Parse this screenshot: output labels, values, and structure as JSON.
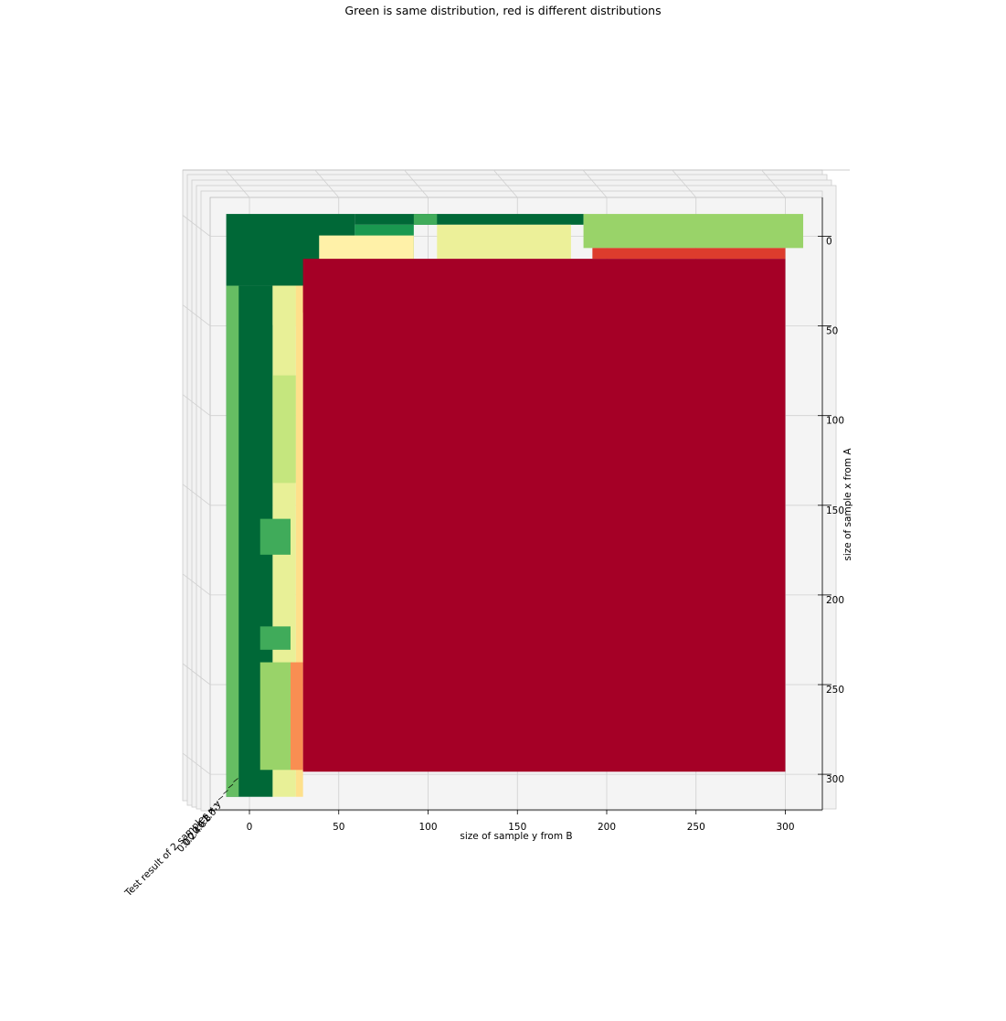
{
  "chart_data": {
    "type": "surface3d",
    "title": "Green is same distribution, red is different distributions",
    "xlabel": "size of sample y from B",
    "ylabel": "size of sample x from A",
    "zlabel": "Test result of 2 samples x,y",
    "x_ticks": [
      0,
      50,
      100,
      150,
      200,
      250,
      300
    ],
    "y_ticks": [
      0,
      50,
      100,
      150,
      200,
      250,
      300
    ],
    "z_ticks": [
      "0.0",
      "0.2",
      "0.4",
      "0.6",
      "0.8",
      "1.0"
    ],
    "xlim": [
      -15,
      320
    ],
    "ylim": [
      -20,
      318
    ],
    "colormap": "RdYlGn",
    "colors": {
      "green_dark": "#006837",
      "green": "#1a9850",
      "green_mid": "#66bd63",
      "green_light": "#a6d96a",
      "yellow_green": "#d9ef8b",
      "yellow": "#fff1a8",
      "orange_light": "#fdae61",
      "orange": "#f46d43",
      "red": "#d73027",
      "red_dark": "#a50026"
    },
    "cells": [
      {
        "x": [
          -13,
          59
        ],
        "y": [
          -15,
          25
        ],
        "value": 1.0
      },
      {
        "x": [
          59,
          187
        ],
        "y": [
          -15,
          -9
        ],
        "value": 1.0
      },
      {
        "x": [
          -13,
          13
        ],
        "y": [
          25,
          310
        ],
        "value": 1.0
      },
      {
        "x": [
          -13,
          -6
        ],
        "y": [
          25,
          310
        ],
        "value": 0.8
      },
      {
        "x": [
          59,
          92
        ],
        "y": [
          -9,
          10
        ],
        "value": 0.9
      },
      {
        "x": [
          92,
          105
        ],
        "y": [
          -15,
          -9
        ],
        "value": 0.85
      },
      {
        "x": [
          105,
          180
        ],
        "y": [
          -9,
          10
        ],
        "value": 0.55
      },
      {
        "x": [
          187,
          310
        ],
        "y": [
          -15,
          4
        ],
        "value": 0.72
      },
      {
        "x": [
          192,
          300
        ],
        "y": [
          4,
          10
        ],
        "value": 0.12
      },
      {
        "x": [
          39,
          92
        ],
        "y": [
          -3,
          25
        ],
        "value": 0.5
      },
      {
        "x": [
          13,
          39
        ],
        "y": [
          25,
          47
        ],
        "value": 0.5
      },
      {
        "x": [
          13,
          26
        ],
        "y": [
          25,
          310
        ],
        "value": 0.56
      },
      {
        "x": [
          13,
          26
        ],
        "y": [
          75,
          135
        ],
        "value": 0.64
      },
      {
        "x": [
          26,
          30
        ],
        "y": [
          25,
          310
        ],
        "value": 0.4
      },
      {
        "x": [
          6,
          23
        ],
        "y": [
          155,
          175
        ],
        "value": 0.85
      },
      {
        "x": [
          6,
          23
        ],
        "y": [
          215,
          228
        ],
        "value": 0.85
      },
      {
        "x": [
          6,
          23
        ],
        "y": [
          235,
          295
        ],
        "value": 0.72
      },
      {
        "x": [
          23,
          30
        ],
        "y": [
          235,
          295
        ],
        "value": 0.25
      },
      {
        "x": [
          53,
          92
        ],
        "y": [
          13,
          22
        ],
        "value": 0.1
      },
      {
        "x": [
          30,
          53
        ],
        "y": [
          25,
          40
        ],
        "value": 0.15
      },
      {
        "x": [
          30,
          300
        ],
        "y": [
          10,
          296
        ],
        "value": 0.0
      }
    ]
  }
}
